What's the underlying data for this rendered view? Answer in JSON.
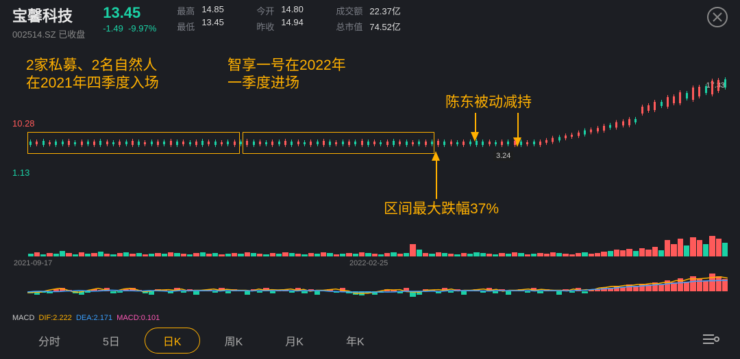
{
  "header": {
    "name": "宝馨科技",
    "code": "002514.SZ 已收盘",
    "price": "13.45",
    "change": "-1.49",
    "change_pct": "-9.97%",
    "price_color": "#1bd1a5",
    "stats": {
      "high_lbl": "最高",
      "high_val": "14.85",
      "low_lbl": "最低",
      "low_val": "13.45",
      "open_lbl": "今开",
      "open_val": "14.80",
      "prev_lbl": "昨收",
      "prev_val": "14.94",
      "amt_lbl": "成交额",
      "amt_val": "22.37亿",
      "cap_lbl": "总市值",
      "cap_val": "74.52亿"
    }
  },
  "chart": {
    "y_top": "10.28",
    "y_bot": "1.13",
    "tag_high": "17.33",
    "tag_low": "3.24",
    "date_left": "2021-09-17",
    "date_right": "2022-02-25",
    "colors": {
      "up": "#ff5a5a",
      "down": "#1bd1a5",
      "bg": "#1c1e23",
      "annot": "#ffb000"
    },
    "series": [
      {
        "c": "d",
        "h": 5
      },
      {
        "c": "u",
        "h": 4
      },
      {
        "c": "d",
        "h": 6
      },
      {
        "c": "u",
        "h": 3
      },
      {
        "c": "d",
        "h": 5
      },
      {
        "c": "d",
        "h": 4
      },
      {
        "c": "u",
        "h": 6
      },
      {
        "c": "d",
        "h": 3
      },
      {
        "c": "u",
        "h": 5
      },
      {
        "c": "d",
        "h": 4
      },
      {
        "c": "u",
        "h": 5
      },
      {
        "c": "d",
        "h": 6
      },
      {
        "c": "u",
        "h": 4
      },
      {
        "c": "d",
        "h": 3
      },
      {
        "c": "u",
        "h": 5
      },
      {
        "c": "d",
        "h": 4
      },
      {
        "c": "u",
        "h": 6
      },
      {
        "c": "d",
        "h": 5
      },
      {
        "c": "u",
        "h": 3
      },
      {
        "c": "d",
        "h": 4
      },
      {
        "c": "u",
        "h": 5
      },
      {
        "c": "d",
        "h": 4
      },
      {
        "c": "u",
        "h": 6
      },
      {
        "c": "d",
        "h": 5
      },
      {
        "c": "u",
        "h": 4
      },
      {
        "c": "d",
        "h": 3
      },
      {
        "c": "u",
        "h": 5
      },
      {
        "c": "d",
        "h": 6
      },
      {
        "c": "u",
        "h": 4
      },
      {
        "c": "d",
        "h": 5
      },
      {
        "c": "u",
        "h": 3
      },
      {
        "c": "d",
        "h": 4
      },
      {
        "c": "u",
        "h": 5
      },
      {
        "c": "d",
        "h": 4
      },
      {
        "c": "u",
        "h": 6
      },
      {
        "c": "d",
        "h": 5
      },
      {
        "c": "u",
        "h": 4
      },
      {
        "c": "d",
        "h": 3
      },
      {
        "c": "u",
        "h": 5
      },
      {
        "c": "d",
        "h": 4
      },
      {
        "c": "u",
        "h": 6
      },
      {
        "c": "d",
        "h": 5
      },
      {
        "c": "u",
        "h": 4
      },
      {
        "c": "d",
        "h": 3
      },
      {
        "c": "u",
        "h": 5
      },
      {
        "c": "d",
        "h": 4
      },
      {
        "c": "u",
        "h": 6
      },
      {
        "c": "d",
        "h": 5
      },
      {
        "c": "u",
        "h": 3
      },
      {
        "c": "d",
        "h": 4
      },
      {
        "c": "u",
        "h": 5
      },
      {
        "c": "d",
        "h": 4
      },
      {
        "c": "u",
        "h": 6
      },
      {
        "c": "d",
        "h": 5
      },
      {
        "c": "u",
        "h": 4
      },
      {
        "c": "d",
        "h": 3
      },
      {
        "c": "u",
        "h": 5
      },
      {
        "c": "d",
        "h": 6
      },
      {
        "c": "u",
        "h": 4
      },
      {
        "c": "d",
        "h": 5
      },
      {
        "c": "u",
        "h": 3
      },
      {
        "c": "d",
        "h": 4
      },
      {
        "c": "u",
        "h": 5
      },
      {
        "c": "d",
        "h": 4
      },
      {
        "c": "u",
        "h": 6
      },
      {
        "c": "d",
        "h": 5
      },
      {
        "c": "u",
        "h": 4
      },
      {
        "c": "d",
        "h": 3
      },
      {
        "c": "u",
        "h": 5
      },
      {
        "c": "d",
        "h": 4
      },
      {
        "c": "d",
        "h": 6
      },
      {
        "c": "d",
        "h": 5
      },
      {
        "c": "u",
        "h": 4
      },
      {
        "c": "d",
        "h": 3
      },
      {
        "c": "u",
        "h": 5
      },
      {
        "c": "d",
        "h": 4
      },
      {
        "c": "u",
        "h": 6
      },
      {
        "c": "d",
        "h": 5
      },
      {
        "c": "u",
        "h": 3
      },
      {
        "c": "d",
        "h": 4
      },
      {
        "c": "u",
        "h": 5
      },
      {
        "c": "u",
        "h": 4
      },
      {
        "c": "u",
        "h": 6
      },
      {
        "c": "d",
        "h": 5
      },
      {
        "c": "u",
        "h": 4
      },
      {
        "c": "u",
        "h": 3
      },
      {
        "c": "u",
        "h": 5
      },
      {
        "c": "d",
        "h": 6
      },
      {
        "c": "u",
        "h": 4
      },
      {
        "c": "u",
        "h": 5
      },
      {
        "c": "u",
        "h": 7
      },
      {
        "c": "d",
        "h": 4
      },
      {
        "c": "u",
        "h": 8
      },
      {
        "c": "u",
        "h": 6
      },
      {
        "c": "u",
        "h": 9
      },
      {
        "c": "d",
        "h": 5
      },
      {
        "c": "u",
        "h": 10
      },
      {
        "c": "u",
        "h": 8
      },
      {
        "c": "u",
        "h": 12
      },
      {
        "c": "d",
        "h": 6
      },
      {
        "c": "u",
        "h": 14
      },
      {
        "c": "u",
        "h": 10
      },
      {
        "c": "u",
        "h": 16
      },
      {
        "c": "d",
        "h": 8
      },
      {
        "c": "u",
        "h": 18
      },
      {
        "c": "u",
        "h": 14
      },
      {
        "c": "d",
        "h": 10
      },
      {
        "c": "u",
        "h": 20
      },
      {
        "c": "u",
        "h": 16
      },
      {
        "c": "d",
        "h": 12
      }
    ],
    "vol": [
      4,
      6,
      3,
      5,
      4,
      8,
      5,
      3,
      6,
      4,
      5,
      7,
      4,
      3,
      5,
      6,
      4,
      5,
      3,
      4,
      5,
      4,
      6,
      5,
      4,
      3,
      5,
      6,
      4,
      5,
      3,
      4,
      5,
      4,
      6,
      5,
      4,
      3,
      5,
      4,
      6,
      5,
      4,
      3,
      5,
      4,
      6,
      5,
      3,
      4,
      5,
      4,
      6,
      5,
      4,
      3,
      5,
      6,
      4,
      5,
      18,
      10,
      5,
      4,
      6,
      5,
      4,
      3,
      5,
      4,
      6,
      5,
      4,
      3,
      5,
      4,
      6,
      5,
      3,
      4,
      5,
      4,
      6,
      5,
      4,
      3,
      5,
      6,
      4,
      5,
      7,
      8,
      10,
      9,
      11,
      8,
      12,
      10,
      14,
      9,
      24,
      18,
      26,
      16,
      28,
      24,
      18,
      30,
      26,
      20
    ],
    "macd_bars": [
      -2,
      -3,
      -1,
      -2,
      2,
      3,
      1,
      -2,
      -3,
      -1,
      2,
      1,
      3,
      -2,
      -1,
      2,
      3,
      1,
      -2,
      -3,
      2,
      1,
      -2,
      3,
      -1,
      2,
      -3,
      1,
      2,
      -1,
      3,
      -2,
      2,
      1,
      -3,
      2,
      -1,
      3,
      -2,
      1,
      2,
      -1,
      3,
      -2,
      2,
      -3,
      1,
      2,
      -1,
      3,
      -2,
      -3,
      -4,
      -2,
      -3,
      -1,
      2,
      1,
      -2,
      3,
      -5,
      -3,
      2,
      1,
      -2,
      3,
      -1,
      2,
      -3,
      1,
      2,
      -1,
      3,
      -2,
      2,
      -3,
      1,
      2,
      -1,
      3,
      -2,
      2,
      1,
      -3,
      2,
      -1,
      3,
      -2,
      1,
      2,
      4,
      3,
      5,
      4,
      6,
      5,
      7,
      6,
      8,
      6,
      10,
      8,
      12,
      9,
      14,
      12,
      10,
      16,
      14,
      11
    ]
  },
  "annotations": {
    "a1_l1": "2家私募、2名自然人",
    "a1_l2": "在2021年四季度入场",
    "a2_l1": "智享一号在2022年",
    "a2_l2": "一季度进场",
    "a3": "陈东被动减持",
    "a4": "区间最大跌幅37%"
  },
  "macd": {
    "label": "MACD",
    "dif_lbl": "DIF:",
    "dif_val": "2.222",
    "dif_color": "#ffb000",
    "dea_lbl": "DEA:",
    "dea_val": "2.171",
    "dea_color": "#3aa0ff",
    "macd_lbl": "MACD:",
    "macd_val": "0.101",
    "macd_color": "#ff5ab8"
  },
  "tabs": {
    "items": [
      "分时",
      "5日",
      "日K",
      "周K",
      "月K",
      "年K"
    ],
    "active": 2
  }
}
